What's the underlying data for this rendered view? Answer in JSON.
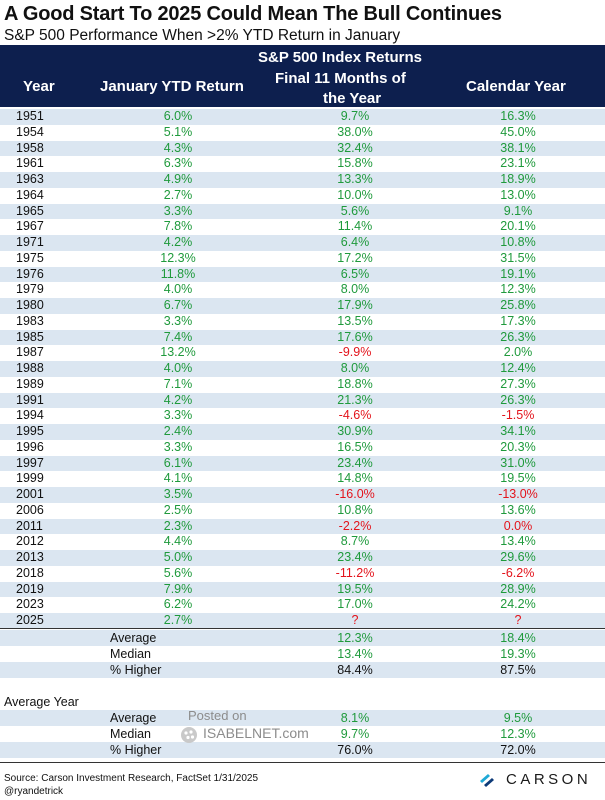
{
  "title": "A Good Start To 2025 Could Mean The Bull Continues",
  "subtitle": "S&P 500 Performance When >2% YTD Return in January",
  "header": {
    "year": "Year",
    "jan": "January YTD Return",
    "sp_group": "S&P 500 Index Returns",
    "final_line1": "Final 11 Months of",
    "final_line2": "the Year",
    "calendar": "Calendar Year"
  },
  "rows": [
    {
      "year": "1951",
      "jan": "6.0%",
      "final": "9.7%",
      "cal": "16.3%"
    },
    {
      "year": "1954",
      "jan": "5.1%",
      "final": "38.0%",
      "cal": "45.0%"
    },
    {
      "year": "1958",
      "jan": "4.3%",
      "final": "32.4%",
      "cal": "38.1%"
    },
    {
      "year": "1961",
      "jan": "6.3%",
      "final": "15.8%",
      "cal": "23.1%"
    },
    {
      "year": "1963",
      "jan": "4.9%",
      "final": "13.3%",
      "cal": "18.9%"
    },
    {
      "year": "1964",
      "jan": "2.7%",
      "final": "10.0%",
      "cal": "13.0%"
    },
    {
      "year": "1965",
      "jan": "3.3%",
      "final": "5.6%",
      "cal": "9.1%"
    },
    {
      "year": "1967",
      "jan": "7.8%",
      "final": "11.4%",
      "cal": "20.1%"
    },
    {
      "year": "1971",
      "jan": "4.2%",
      "final": "6.4%",
      "cal": "10.8%"
    },
    {
      "year": "1975",
      "jan": "12.3%",
      "final": "17.2%",
      "cal": "31.5%"
    },
    {
      "year": "1976",
      "jan": "11.8%",
      "final": "6.5%",
      "cal": "19.1%"
    },
    {
      "year": "1979",
      "jan": "4.0%",
      "final": "8.0%",
      "cal": "12.3%"
    },
    {
      "year": "1980",
      "jan": "6.7%",
      "final": "17.9%",
      "cal": "25.8%"
    },
    {
      "year": "1983",
      "jan": "3.3%",
      "final": "13.5%",
      "cal": "17.3%"
    },
    {
      "year": "1985",
      "jan": "7.4%",
      "final": "17.6%",
      "cal": "26.3%"
    },
    {
      "year": "1987",
      "jan": "13.2%",
      "final": "-9.9%",
      "cal": "2.0%"
    },
    {
      "year": "1988",
      "jan": "4.0%",
      "final": "8.0%",
      "cal": "12.4%"
    },
    {
      "year": "1989",
      "jan": "7.1%",
      "final": "18.8%",
      "cal": "27.3%"
    },
    {
      "year": "1991",
      "jan": "4.2%",
      "final": "21.3%",
      "cal": "26.3%"
    },
    {
      "year": "1994",
      "jan": "3.3%",
      "final": "-4.6%",
      "cal": "-1.5%"
    },
    {
      "year": "1995",
      "jan": "2.4%",
      "final": "30.9%",
      "cal": "34.1%"
    },
    {
      "year": "1996",
      "jan": "3.3%",
      "final": "16.5%",
      "cal": "20.3%"
    },
    {
      "year": "1997",
      "jan": "6.1%",
      "final": "23.4%",
      "cal": "31.0%"
    },
    {
      "year": "1999",
      "jan": "4.1%",
      "final": "14.8%",
      "cal": "19.5%"
    },
    {
      "year": "2001",
      "jan": "3.5%",
      "final": "-16.0%",
      "cal": "-13.0%"
    },
    {
      "year": "2006",
      "jan": "2.5%",
      "final": "10.8%",
      "cal": "13.6%"
    },
    {
      "year": "2011",
      "jan": "2.3%",
      "final": "-2.2%",
      "cal": "0.0%"
    },
    {
      "year": "2012",
      "jan": "4.4%",
      "final": "8.7%",
      "cal": "13.4%"
    },
    {
      "year": "2013",
      "jan": "5.0%",
      "final": "23.4%",
      "cal": "29.6%"
    },
    {
      "year": "2018",
      "jan": "5.6%",
      "final": "-11.2%",
      "cal": "-6.2%"
    },
    {
      "year": "2019",
      "jan": "7.9%",
      "final": "19.5%",
      "cal": "28.9%"
    },
    {
      "year": "2023",
      "jan": "6.2%",
      "final": "17.0%",
      "cal": "24.2%"
    },
    {
      "year": "2025",
      "jan": "2.7%",
      "final": "?",
      "cal": "?"
    }
  ],
  "summary": [
    {
      "label": "Average",
      "final": "12.3%",
      "cal": "18.4%"
    },
    {
      "label": "Median",
      "final": "13.4%",
      "cal": "19.3%"
    },
    {
      "label": "% Higher",
      "final": "84.4%",
      "cal": "87.5%"
    }
  ],
  "average_year": {
    "label": "Average Year",
    "rows": [
      {
        "label": "Average",
        "final": "8.1%",
        "cal": "9.5%"
      },
      {
        "label": "Median",
        "final": "9.7%",
        "cal": "12.3%"
      },
      {
        "label": "% Higher",
        "final": "76.0%",
        "cal": "72.0%"
      }
    ]
  },
  "watermark": {
    "posted": "Posted on",
    "site": "ISABELNET.com"
  },
  "footer": {
    "source": "Source: Carson Investment Research, FactSet 1/31/2025",
    "handle": "@ryandetrick",
    "logo_text": "CARSON"
  },
  "colors": {
    "header_bg": "#0d1f4e",
    "row_shade": "#dbe6f1",
    "positive": "#1f9a3c",
    "negative": "#e3141c"
  }
}
